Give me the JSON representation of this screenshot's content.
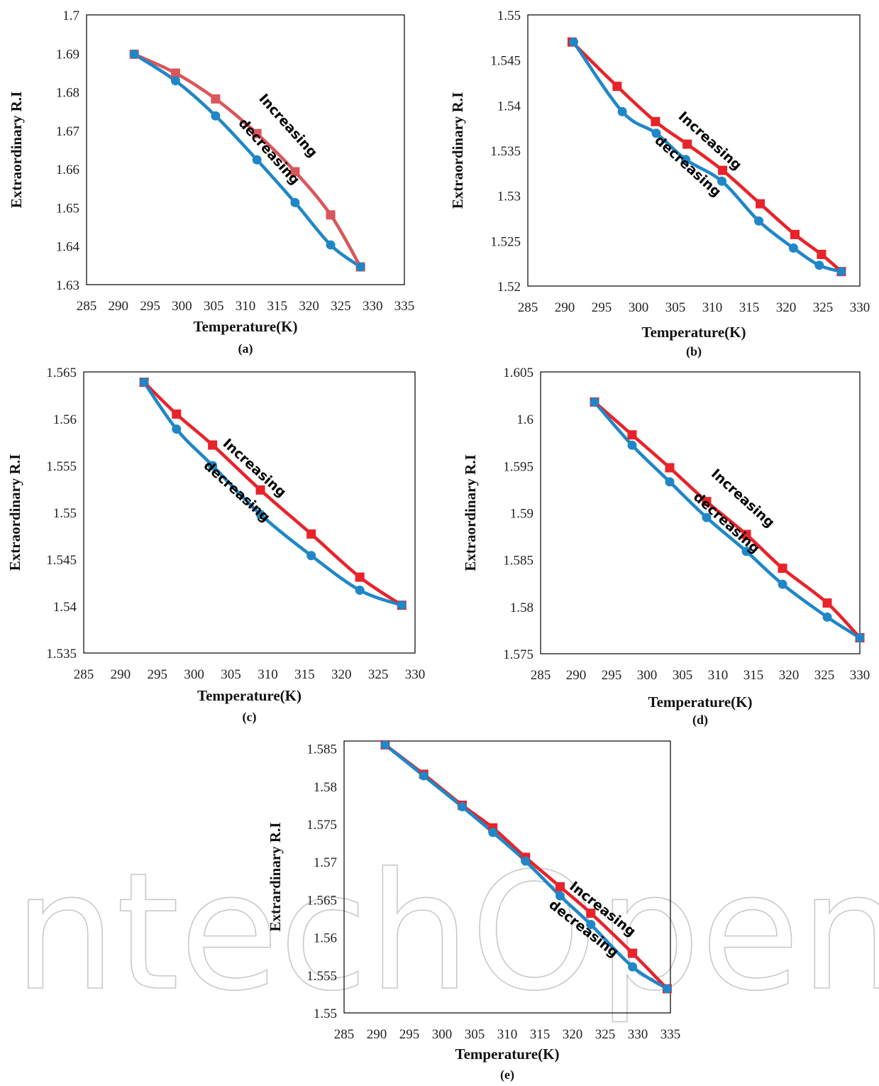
{
  "watermark": "IntechOpen",
  "colors": {
    "increasing": "#e8232a",
    "increasing_a": "#d9575a",
    "decreasing": "#1f87c7"
  },
  "chart_data": [
    {
      "panel": "(a)",
      "type": "line",
      "xlabel": "Temperature(K)",
      "ylabel": "Extraordinary R.I",
      "xlim": [
        285,
        335
      ],
      "ylim": [
        1.63,
        1.7
      ],
      "xticks": [
        285,
        290,
        295,
        300,
        305,
        310,
        315,
        320,
        325,
        330,
        335
      ],
      "yticks": [
        1.63,
        1.64,
        1.65,
        1.66,
        1.67,
        1.68,
        1.69,
        1.7
      ],
      "ytick_labels": [
        "1.63",
        "1.64",
        "1.65",
        "1.66",
        "1.67",
        "1.68",
        "1.69",
        "1.7"
      ],
      "series": [
        {
          "name": "Increasing",
          "marker": "square",
          "x": [
            292.5,
            299,
            305.3,
            311.8,
            317.8,
            323.4,
            328.1
          ],
          "y": [
            1.6898,
            1.6849,
            1.6782,
            1.6692,
            1.6593,
            1.6481,
            1.6346
          ]
        },
        {
          "name": "decreasing",
          "marker": "circle",
          "x": [
            292.5,
            299,
            305.3,
            311.8,
            317.8,
            323.4,
            328.1
          ],
          "y": [
            1.6898,
            1.6829,
            1.6738,
            1.6624,
            1.6513,
            1.6403,
            1.6346
          ]
        }
      ],
      "annotations": [
        {
          "text": "Increasing",
          "x": 316.2,
          "y": 1.6705,
          "angle": 48
        },
        {
          "text": "decreasing",
          "x": 313.2,
          "y": 1.6638,
          "angle": 48
        }
      ]
    },
    {
      "panel": "(b)",
      "type": "line",
      "xlabel": "Temperature(K)",
      "ylabel": "Extraordinary R.I",
      "xlim": [
        285,
        330
      ],
      "ylim": [
        1.52,
        1.55
      ],
      "xticks": [
        285,
        290,
        295,
        300,
        305,
        310,
        315,
        320,
        325,
        330
      ],
      "yticks": [
        1.52,
        1.525,
        1.53,
        1.535,
        1.54,
        1.545,
        1.55
      ],
      "ytick_labels": [
        "1.52",
        "1.525",
        "1.53",
        "1.535",
        "1.54",
        "1.545",
        "1.55"
      ],
      "series": [
        {
          "name": "Increasing",
          "marker": "square",
          "x": [
            291,
            297.1,
            302.3,
            306.6,
            311.4,
            316.5,
            321.2,
            324.8,
            327.5
          ],
          "y": [
            1.547,
            1.5421,
            1.5382,
            1.5357,
            1.5328,
            1.5291,
            1.5257,
            1.5235,
            1.5216
          ]
        },
        {
          "name": "decreasing",
          "marker": "circle",
          "x": [
            291.2,
            297.8,
            302.4,
            306.4,
            311.3,
            316.3,
            321,
            324.5,
            327.5
          ],
          "y": [
            1.547,
            1.5393,
            1.5369,
            1.534,
            1.5316,
            1.5272,
            1.5242,
            1.5223,
            1.5216
          ]
        }
      ],
      "annotations": [
        {
          "text": "Increasing",
          "x": 309.3,
          "y": 1.5357,
          "angle": 42
        },
        {
          "text": "decreasing",
          "x": 306.3,
          "y": 1.5329,
          "angle": 42
        }
      ]
    },
    {
      "panel": "(c)",
      "type": "line",
      "xlabel": "Temperature(K)",
      "ylabel": "Extraordinary R.I",
      "xlim": [
        285,
        330
      ],
      "ylim": [
        1.535,
        1.565
      ],
      "xticks": [
        285,
        290,
        295,
        300,
        305,
        310,
        315,
        320,
        325,
        330
      ],
      "yticks": [
        1.535,
        1.54,
        1.545,
        1.55,
        1.555,
        1.56,
        1.565
      ],
      "ytick_labels": [
        "1.535",
        "1.54",
        "1.545",
        "1.55",
        "1.555",
        "1.56",
        "1.565"
      ],
      "series": [
        {
          "name": "Increasing",
          "marker": "square",
          "x": [
            293.2,
            297.6,
            302.5,
            309,
            315.9,
            322.5,
            328.2
          ],
          "y": [
            1.5639,
            1.5605,
            1.5572,
            1.5524,
            1.5477,
            1.5431,
            1.5401
          ]
        },
        {
          "name": "decreasing",
          "marker": "circle",
          "x": [
            293.2,
            297.6,
            302.5,
            309,
            315.9,
            322.5,
            328.2
          ],
          "y": [
            1.5639,
            1.5589,
            1.555,
            1.5498,
            1.5454,
            1.5417,
            1.5401
          ]
        }
      ],
      "annotations": [
        {
          "text": "Increasing",
          "x": 307.8,
          "y": 1.5544,
          "angle": 42
        },
        {
          "text": "decreasing",
          "x": 305.4,
          "y": 1.5519,
          "angle": 42
        }
      ]
    },
    {
      "panel": "(d)",
      "type": "line",
      "xlabel": "Temperature(K)",
      "ylabel": "Extraordinary R.I",
      "xlim": [
        285,
        330
      ],
      "ylim": [
        1.575,
        1.605
      ],
      "xticks": [
        285,
        290,
        295,
        300,
        305,
        310,
        315,
        320,
        325,
        330
      ],
      "yticks": [
        1.575,
        1.58,
        1.585,
        1.59,
        1.595,
        1.6,
        1.605
      ],
      "ytick_labels": [
        "1.575",
        "1.58",
        "1.585",
        "1.59",
        "1.595",
        "1.6",
        "1.605"
      ],
      "series": [
        {
          "name": "Increasing",
          "marker": "square",
          "x": [
            292.6,
            297.9,
            303.2,
            308.4,
            314,
            319.1,
            325.4,
            330
          ],
          "y": [
            1.6018,
            1.5983,
            1.5948,
            1.5912,
            1.5877,
            1.5841,
            1.5804,
            1.5767
          ]
        },
        {
          "name": "decreasing",
          "marker": "circle",
          "x": [
            292.6,
            297.9,
            303.2,
            308.4,
            314,
            319.1,
            325.4,
            330
          ],
          "y": [
            1.6018,
            1.5972,
            1.5933,
            1.5895,
            1.5859,
            1.5824,
            1.5789,
            1.5767
          ]
        }
      ],
      "annotations": [
        {
          "text": "Increasing",
          "x": 313.1,
          "y": 1.5912,
          "angle": 42
        },
        {
          "text": "decreasing",
          "x": 310.8,
          "y": 1.5886,
          "angle": 42
        }
      ]
    },
    {
      "panel": "(e)",
      "type": "line",
      "xlabel": "Temperature(K)",
      "ylabel": "Extrardinary R.I",
      "xlim": [
        285,
        335
      ],
      "ylim": [
        1.55,
        1.586
      ],
      "xticks": [
        285,
        290,
        295,
        300,
        305,
        310,
        315,
        320,
        325,
        330,
        335
      ],
      "yticks": [
        1.55,
        1.555,
        1.56,
        1.565,
        1.57,
        1.575,
        1.58,
        1.585
      ],
      "ytick_labels": [
        "1.55",
        "1.555",
        "1.56",
        "1.565",
        "1.57",
        "1.575",
        "1.58",
        "1.585"
      ],
      "series": [
        {
          "name": "Increasing",
          "marker": "square",
          "x": [
            291.3,
            297.2,
            303.1,
            307.8,
            312.8,
            318.1,
            322.8,
            329.2,
            334.5
          ],
          "y": [
            1.5855,
            1.5816,
            1.5775,
            1.5745,
            1.5706,
            1.5667,
            1.5632,
            1.5579,
            1.5532
          ]
        },
        {
          "name": "decreasing",
          "marker": "circle",
          "x": [
            291.3,
            297.2,
            303.1,
            307.8,
            312.8,
            318.1,
            322.8,
            329.2,
            334.5
          ],
          "y": [
            1.5855,
            1.5814,
            1.5773,
            1.5739,
            1.5701,
            1.5655,
            1.5617,
            1.5561,
            1.5532
          ]
        }
      ],
      "annotations": [
        {
          "text": "Increasing",
          "x": 324.2,
          "y": 1.5633,
          "angle": 38
        },
        {
          "text": "decreasing",
          "x": 321.3,
          "y": 1.5607,
          "angle": 38
        }
      ]
    }
  ]
}
